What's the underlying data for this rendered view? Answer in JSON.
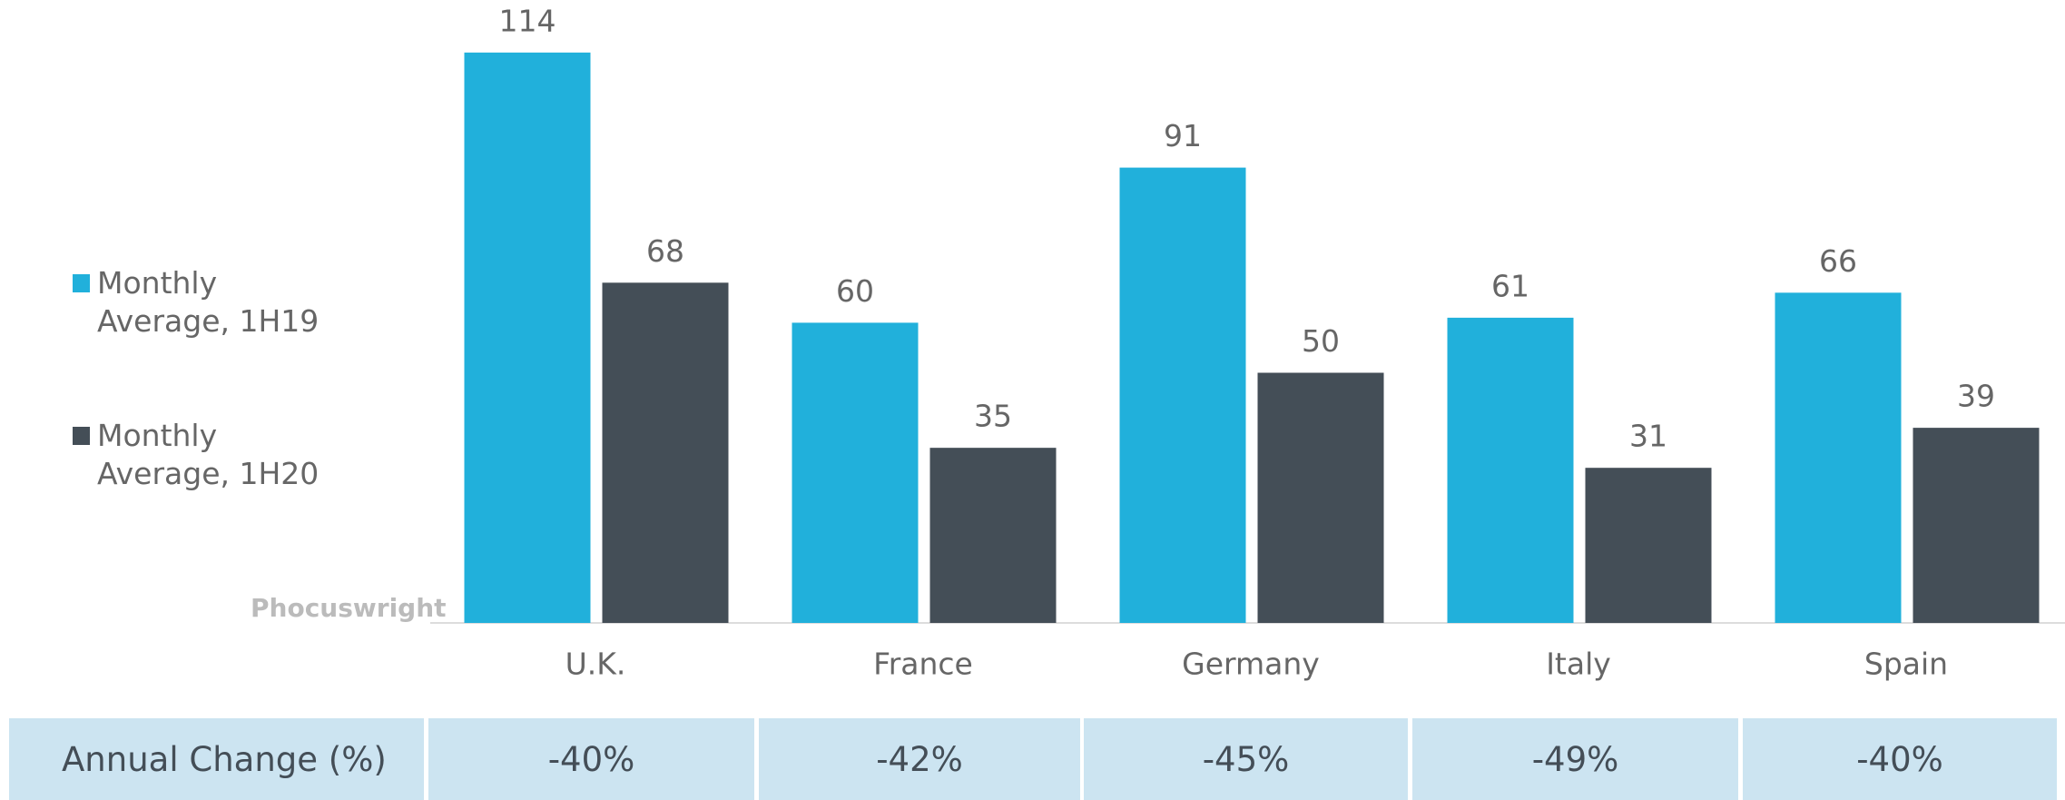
{
  "chart_data": {
    "type": "bar",
    "categories": [
      "U.K.",
      "France",
      "Germany",
      "Italy",
      "Spain"
    ],
    "series": [
      {
        "name": "Monthly Average, 1H19",
        "color": "#21b0db",
        "values": [
          114,
          60,
          91,
          61,
          66
        ]
      },
      {
        "name": "Monthly Average, 1H20",
        "color": "#444e57",
        "values": [
          68,
          35,
          50,
          31,
          39
        ]
      }
    ],
    "watermark": "Phocuswright",
    "table": {
      "header": "Annual Change (%)",
      "cells": [
        "-40%",
        "-42%",
        "-45%",
        "-49%",
        "-40%"
      ]
    }
  }
}
